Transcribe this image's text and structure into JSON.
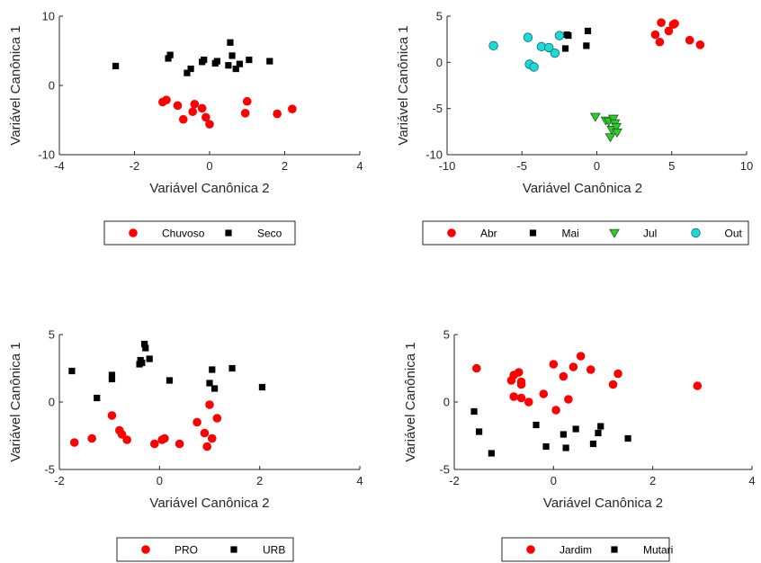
{
  "colors": {
    "red": "#ff0000",
    "black": "#000000",
    "green": "#2ecc2e",
    "cyan": "#1fd9d9"
  },
  "chart_data": [
    {
      "type": "scatter",
      "xlabel": "Variável Canônica 2",
      "ylabel": "Variável Canônica 1",
      "xlim": [
        -4,
        4
      ],
      "ylim": [
        -10,
        10
      ],
      "xticks": [
        "-4",
        "-2",
        "0",
        "2",
        "4"
      ],
      "yticks": [
        "10",
        "0",
        "-10"
      ],
      "legend_position": "bottom",
      "grid": false,
      "series": [
        {
          "name": "Chuvoso",
          "marker": "circle",
          "color": "red",
          "points": [
            [
              -1.25,
              -2.4
            ],
            [
              -1.15,
              -2.1
            ],
            [
              -0.85,
              -2.9
            ],
            [
              -0.7,
              -4.9
            ],
            [
              -0.45,
              -3.8
            ],
            [
              -0.4,
              -2.7
            ],
            [
              -0.2,
              -3.3
            ],
            [
              -0.1,
              -4.6
            ],
            [
              0,
              -5.6
            ],
            [
              0.95,
              -4.0
            ],
            [
              1.0,
              -2.3
            ],
            [
              1.8,
              -4.1
            ],
            [
              2.2,
              -3.4
            ]
          ]
        },
        {
          "name": "Seco",
          "marker": "square",
          "color": "black",
          "points": [
            [
              -2.5,
              2.8
            ],
            [
              -1.1,
              3.9
            ],
            [
              -1.05,
              4.4
            ],
            [
              -0.6,
              1.8
            ],
            [
              -0.5,
              2.4
            ],
            [
              -0.2,
              3.4
            ],
            [
              -0.15,
              3.7
            ],
            [
              0.15,
              3.2
            ],
            [
              0.2,
              3.5
            ],
            [
              0.5,
              2.9
            ],
            [
              0.55,
              6.2
            ],
            [
              0.6,
              4.3
            ],
            [
              0.7,
              2.4
            ],
            [
              0.8,
              3.1
            ],
            [
              1.05,
              3.7
            ],
            [
              1.6,
              3.5
            ]
          ]
        }
      ]
    },
    {
      "type": "scatter",
      "xlabel": "Variável Canônica 2",
      "ylabel": "Variável Canônica 1",
      "xlim": [
        -10,
        10
      ],
      "ylim": [
        -10,
        5
      ],
      "xticks": [
        "-10",
        "-5",
        "0",
        "5",
        "10"
      ],
      "yticks": [
        "5",
        "0",
        "-5",
        "-10"
      ],
      "legend_position": "bottom",
      "grid": false,
      "series": [
        {
          "name": "Abr",
          "marker": "circle",
          "color": "red",
          "points": [
            [
              3.9,
              3.0
            ],
            [
              4.2,
              2.2
            ],
            [
              4.3,
              4.3
            ],
            [
              4.8,
              3.4
            ],
            [
              5.1,
              4.1
            ],
            [
              5.2,
              4.2
            ],
            [
              6.2,
              2.4
            ],
            [
              6.9,
              1.9
            ]
          ]
        },
        {
          "name": "Mai",
          "marker": "square",
          "color": "black",
          "points": [
            [
              -2.1,
              1.5
            ],
            [
              -2.0,
              3.0
            ],
            [
              -1.9,
              2.9
            ],
            [
              -0.7,
              1.8
            ],
            [
              -0.6,
              3.4
            ]
          ]
        },
        {
          "name": "Jul",
          "marker": "triangle-down",
          "color": "green",
          "points": [
            [
              -0.1,
              -5.9
            ],
            [
              0.6,
              -6.3
            ],
            [
              0.8,
              -6.4
            ],
            [
              0.9,
              -8.1
            ],
            [
              1.0,
              -7.3
            ],
            [
              1.1,
              -6.1
            ],
            [
              1.2,
              -6.6
            ],
            [
              1.3,
              -7.0
            ],
            [
              1.35,
              -7.6
            ]
          ]
        },
        {
          "name": "Out",
          "marker": "circle",
          "color": "cyan",
          "points": [
            [
              -6.9,
              1.8
            ],
            [
              -4.6,
              2.7
            ],
            [
              -4.5,
              -0.2
            ],
            [
              -4.2,
              -0.5
            ],
            [
              -3.7,
              1.7
            ],
            [
              -3.2,
              1.6
            ],
            [
              -2.8,
              1.0
            ],
            [
              -2.5,
              2.9
            ]
          ]
        }
      ]
    },
    {
      "type": "scatter",
      "xlabel": "Variável Canônica 2",
      "ylabel": "Variável Canônica 1",
      "xlim": [
        -2,
        4
      ],
      "ylim": [
        -5,
        5
      ],
      "xticks": [
        "-2",
        "0",
        "2",
        "4"
      ],
      "yticks": [
        "5",
        "0",
        "-5"
      ],
      "legend_position": "bottom",
      "grid": false,
      "series": [
        {
          "name": "PRO",
          "marker": "circle",
          "color": "red",
          "points": [
            [
              -1.7,
              -3.0
            ],
            [
              -1.35,
              -2.7
            ],
            [
              -0.95,
              -1.0
            ],
            [
              -0.8,
              -2.1
            ],
            [
              -0.75,
              -2.4
            ],
            [
              -0.65,
              -2.8
            ],
            [
              -0.1,
              -3.1
            ],
            [
              0.05,
              -2.8
            ],
            [
              0.1,
              -2.7
            ],
            [
              0.4,
              -3.1
            ],
            [
              0.75,
              -1.5
            ],
            [
              0.9,
              -2.3
            ],
            [
              0.95,
              -3.3
            ],
            [
              1.0,
              -0.2
            ],
            [
              1.05,
              -2.7
            ],
            [
              1.15,
              -1.2
            ]
          ]
        },
        {
          "name": "URB",
          "marker": "square",
          "color": "black",
          "points": [
            [
              -1.75,
              2.3
            ],
            [
              -1.25,
              0.3
            ],
            [
              -0.95,
              1.7
            ],
            [
              -0.95,
              2.0
            ],
            [
              -0.4,
              2.8
            ],
            [
              -0.38,
              3.1
            ],
            [
              -0.35,
              2.9
            ],
            [
              -0.3,
              4.3
            ],
            [
              -0.28,
              4.0
            ],
            [
              -0.2,
              3.2
            ],
            [
              0.2,
              1.6
            ],
            [
              1.0,
              1.4
            ],
            [
              1.05,
              2.4
            ],
            [
              1.1,
              1.0
            ],
            [
              1.45,
              2.5
            ],
            [
              2.05,
              1.1
            ]
          ]
        }
      ]
    },
    {
      "type": "scatter",
      "xlabel": "Variável Canônica 2",
      "ylabel": "Variável Canônica 1",
      "xlim": [
        -2,
        4
      ],
      "ylim": [
        -5,
        5
      ],
      "xticks": [
        "-2",
        "0",
        "2",
        "4"
      ],
      "yticks": [
        "5",
        "0",
        "-5"
      ],
      "legend_position": "bottom",
      "grid": false,
      "series": [
        {
          "name": "Jardim",
          "marker": "circle",
          "color": "red",
          "points": [
            [
              -1.55,
              2.5
            ],
            [
              -0.85,
              1.6
            ],
            [
              -0.8,
              2.0
            ],
            [
              -0.8,
              0.4
            ],
            [
              -0.7,
              2.2
            ],
            [
              -0.65,
              1.5
            ],
            [
              -0.65,
              1.3
            ],
            [
              -0.65,
              0.3
            ],
            [
              -0.5,
              0.0
            ],
            [
              -0.2,
              0.6
            ],
            [
              0.0,
              2.8
            ],
            [
              0.05,
              -0.6
            ],
            [
              0.2,
              1.9
            ],
            [
              0.3,
              0.2
            ],
            [
              0.4,
              2.6
            ],
            [
              0.55,
              3.4
            ],
            [
              0.75,
              2.4
            ],
            [
              1.2,
              1.3
            ],
            [
              1.3,
              2.1
            ],
            [
              2.9,
              1.2
            ]
          ]
        },
        {
          "name": "Mutari",
          "marker": "square",
          "color": "black",
          "points": [
            [
              -1.6,
              -0.7
            ],
            [
              -1.5,
              -2.2
            ],
            [
              -1.25,
              -3.8
            ],
            [
              -0.35,
              -1.7
            ],
            [
              -0.15,
              -3.3
            ],
            [
              0.2,
              -2.4
            ],
            [
              0.25,
              -3.4
            ],
            [
              0.45,
              -2.0
            ],
            [
              0.8,
              -3.1
            ],
            [
              0.9,
              -2.3
            ],
            [
              0.95,
              -1.8
            ],
            [
              1.5,
              -2.7
            ]
          ]
        }
      ]
    }
  ]
}
